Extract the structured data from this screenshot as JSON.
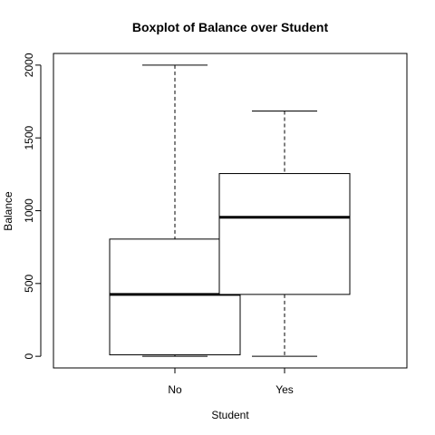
{
  "chart_data": {
    "type": "boxplot",
    "title": "Boxplot of Balance over Student",
    "xlabel": "Student",
    "ylabel": "Balance",
    "categories": [
      "No",
      "Yes"
    ],
    "boxes": [
      {
        "category": "No",
        "min": 0,
        "q1": 10,
        "median": 425,
        "q3": 805,
        "max": 2000
      },
      {
        "category": "Yes",
        "min": 0,
        "q1": 425,
        "median": 955,
        "q3": 1255,
        "max": 1685
      }
    ],
    "y_ticks": [
      0,
      500,
      1000,
      1500,
      2000
    ],
    "ylim": [
      -80,
      2080
    ],
    "grid": false,
    "legend": "none"
  }
}
